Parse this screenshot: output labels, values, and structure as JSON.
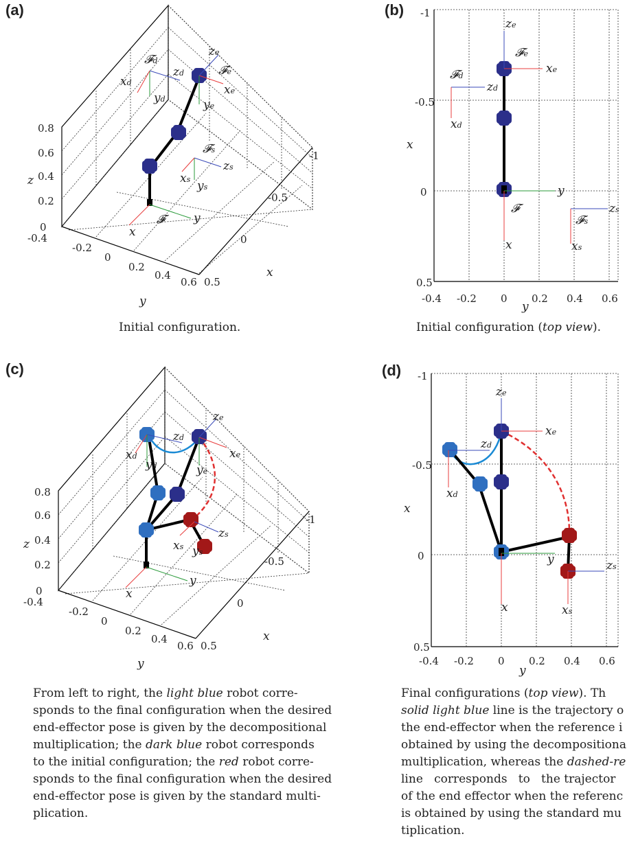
{
  "panels": {
    "a": {
      "label": "(a)",
      "caption": "Initial configuration."
    },
    "b": {
      "label": "(b)",
      "caption_main": "Initial configuration (",
      "caption_em": "top view",
      "caption_end": ")."
    },
    "c": {
      "label": "(c)"
    },
    "d": {
      "label": "(d)"
    }
  },
  "caption_c": [
    {
      "t": "From left to right, the "
    },
    {
      "t": "light blue",
      "em": true
    },
    {
      "t": " robot corre-\nsponds to the final configuration when the desired\nend-effector pose is given by the decompositional\nmultiplication; the "
    },
    {
      "t": "dark blue",
      "em": true
    },
    {
      "t": " robot corresponds\nto the initial configuration; the "
    },
    {
      "t": "red",
      "em": true
    },
    {
      "t": " robot corre-\nsponds to the final configuration when the desired\nend-effector pose is given by the standard multi-\nplication."
    }
  ],
  "caption_d": [
    {
      "t": "Final configurations ("
    },
    {
      "t": "top view",
      "em": true
    },
    {
      "t": "). Th\n"
    },
    {
      "t": "solid light blue",
      "em": true
    },
    {
      "t": " line is the trajectory o\nthe end-effector when the reference i\nobtained by using the decompositiona\nmultiplication, whereas the "
    },
    {
      "t": "dashed-re",
      "em": true
    },
    {
      "t": "\nline   corresponds   to   the trajector\nof the end effector when the referenc\nis obtained by using the standard mu\ntiplication."
    }
  ],
  "axes3d": {
    "z_ticks": [
      "0",
      "0.2",
      "0.4",
      "0.6",
      "0.8"
    ],
    "y_ticks": [
      "-0.4",
      "-0.2",
      "0",
      "0.2",
      "0.4",
      "0.6"
    ],
    "x_ticks": [
      "0.5",
      "0",
      "-0.5",
      "-1"
    ],
    "xlabel": "x",
    "ylabel": "y",
    "zlabel": "z"
  },
  "axes2d": {
    "x_ticks": [
      "-0.4",
      "-0.2",
      "0",
      "0.2",
      "0.4",
      "0.6"
    ],
    "y_ticks": [
      "-1",
      "-0.5",
      "0",
      "0.5"
    ],
    "xlabel": "y",
    "ylabel": "x"
  },
  "colors": {
    "dark_blue": "#2b2f8a",
    "light_blue": "#2f6fc0",
    "red": "#a21818",
    "traj_blue": "#1a8ad4",
    "traj_red": "#e03030",
    "axis_red": "#e83c3c",
    "axis_green": "#2a9a3a",
    "axis_blue": "#3a4ab8"
  }
}
